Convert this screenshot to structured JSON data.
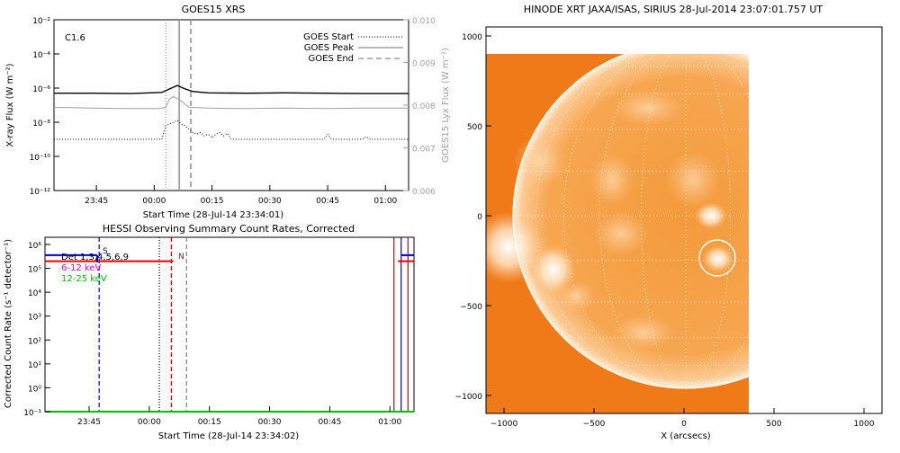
{
  "goes": {
    "title": "GOES15 XRS",
    "xlabel": "Start Time (28-Jul-14 23:34:01)",
    "ylabel": "X-ray Flux (W m⁻²)",
    "ylabel_right": "GOES15 Lyx Flux (W m⁻²)",
    "flare_class": "C1.6",
    "legend": [
      {
        "label": "GOES Start",
        "style": "dotted"
      },
      {
        "label": "GOES Peak",
        "style": "solid"
      },
      {
        "label": "GOES End",
        "style": "dashed"
      }
    ],
    "y_ticks": [
      "10⁻²",
      "10⁻⁴",
      "10⁻⁶",
      "10⁻⁸",
      "10⁻¹⁰",
      "10⁻¹²"
    ],
    "y_ticks_right": [
      "0.010",
      "0.009",
      "0.008",
      "0.007",
      "0.006"
    ],
    "x_ticks": [
      "23:45",
      "00:00",
      "00:15",
      "00:30",
      "00:45",
      "01:00"
    ]
  },
  "hessi": {
    "title": "HESSI Observing Summary Count Rates, Corrected",
    "xlabel": "Start Time (28-Jul-14 23:34:02)",
    "ylabel": "Corrected Count Rate (s⁻¹ detector⁻¹)",
    "legend": [
      {
        "label": "Det 1,3,4,5,6,9",
        "color": "#000000"
      },
      {
        "label": "6-12 keV",
        "color": "#e000e0"
      },
      {
        "label": "12-25 keV",
        "color": "#00c000"
      }
    ],
    "marks": {
      "s": "S",
      "n": "N"
    },
    "y_ticks": [
      "10⁶",
      "10⁵",
      "10⁴",
      "10³",
      "10²",
      "10¹",
      "10⁰",
      "10⁻¹"
    ],
    "x_ticks": [
      "23:45",
      "00:00",
      "00:15",
      "00:30",
      "00:45",
      "01:00"
    ]
  },
  "xrt": {
    "title": "HINODE XRT JAXA/ISAS, SIRIUS 28-Jul-2014 23:07:01.757 UT",
    "xlabel": "X (arcsecs)",
    "y_ticks": [
      "1000",
      "500",
      "0",
      "−500",
      "−1000"
    ],
    "x_ticks": [
      "−1000",
      "−500",
      "0",
      "500",
      "1000"
    ]
  },
  "chart_data": [
    {
      "type": "line",
      "name": "goes_xrs",
      "x_unit": "minutes since 23:34:01",
      "ylim_log10": [
        -12,
        -2
      ],
      "y2lim": [
        0.006,
        0.01
      ],
      "xlim": [
        0,
        92
      ],
      "events": {
        "start": 29,
        "peak": 32.5,
        "end": 35.5
      },
      "series": [
        {
          "name": "long",
          "color": "#000000",
          "x": [
            0,
            10,
            20,
            28,
            30,
            32,
            34,
            36,
            40,
            50,
            60,
            70,
            80,
            92
          ],
          "log10_y": [
            -6.3,
            -6.3,
            -6.32,
            -6.25,
            -6.05,
            -5.85,
            -6.05,
            -6.2,
            -6.28,
            -6.3,
            -6.28,
            -6.3,
            -6.32,
            -6.32
          ]
        },
        {
          "name": "lyx",
          "color": "#a0a0a0",
          "x": [
            0,
            10,
            20,
            27,
            29,
            30,
            31,
            33,
            35,
            40,
            50,
            60,
            70,
            80,
            92
          ],
          "y": [
            0.00795,
            0.00793,
            0.00792,
            0.00792,
            0.00795,
            0.00815,
            0.0082,
            0.0081,
            0.00795,
            0.00793,
            0.00792,
            0.00793,
            0.00792,
            0.00793,
            0.00793
          ]
        },
        {
          "name": "short",
          "color": "#000000",
          "x": [
            0,
            10,
            20,
            28,
            29,
            30,
            31,
            32,
            33,
            34,
            35,
            36,
            37,
            38,
            39,
            40,
            41,
            42,
            43,
            44,
            45,
            46,
            48,
            50,
            70,
            71,
            72,
            80,
            81,
            82,
            92
          ],
          "log10_y": [
            -9,
            -9,
            -9,
            -9,
            -8.2,
            -8.1,
            -8.0,
            -7.9,
            -8.1,
            -8.2,
            -8.4,
            -8.6,
            -8.7,
            -8.6,
            -8.8,
            -8.7,
            -8.9,
            -8.7,
            -8.6,
            -8.8,
            -8.65,
            -9,
            -9,
            -9,
            -9,
            -8.7,
            -9,
            -9,
            -8.85,
            -9,
            -9
          ]
        }
      ]
    },
    {
      "type": "line",
      "name": "hessi_counts",
      "x_unit": "minutes since 23:34:02",
      "ylim_log10": [
        -1,
        6
      ],
      "xlim": [
        0,
        92
      ],
      "vlines": [
        {
          "x": 13.5,
          "color": "#0000c8",
          "style": "dashed"
        },
        {
          "x": 28.5,
          "color": "#000000",
          "style": "dotted"
        },
        {
          "x": 31.5,
          "color": "#c80000",
          "style": "dashed"
        },
        {
          "x": 35.3,
          "color": "#808080",
          "style": "dashed"
        },
        {
          "x": 87.0,
          "color": "#c80000",
          "style": "solid"
        },
        {
          "x": 88.8,
          "color": "#0000c8",
          "style": "solid"
        },
        {
          "x": 90.5,
          "color": "#c80000",
          "style": "solid"
        }
      ],
      "series": [
        {
          "name": "blue_segment",
          "color": "#0000c8",
          "x": [
            0,
            13.0
          ],
          "log10_y": [
            5.55,
            5.55
          ]
        },
        {
          "name": "red_segment_1",
          "color": "#e00000",
          "x": [
            0,
            32
          ],
          "log10_y": [
            5.3,
            5.3
          ]
        },
        {
          "name": "red_segment_2",
          "color": "#e00000",
          "x": [
            88,
            92
          ],
          "log10_y": [
            5.3,
            5.3
          ]
        },
        {
          "name": "blue_segment_2",
          "color": "#0000c8",
          "x": [
            88.8,
            92
          ],
          "log10_y": [
            5.55,
            5.55
          ]
        },
        {
          "name": "green_baseline",
          "color": "#00c000",
          "x": [
            0,
            92
          ],
          "log10_y": [
            -1,
            -1
          ]
        }
      ]
    }
  ]
}
